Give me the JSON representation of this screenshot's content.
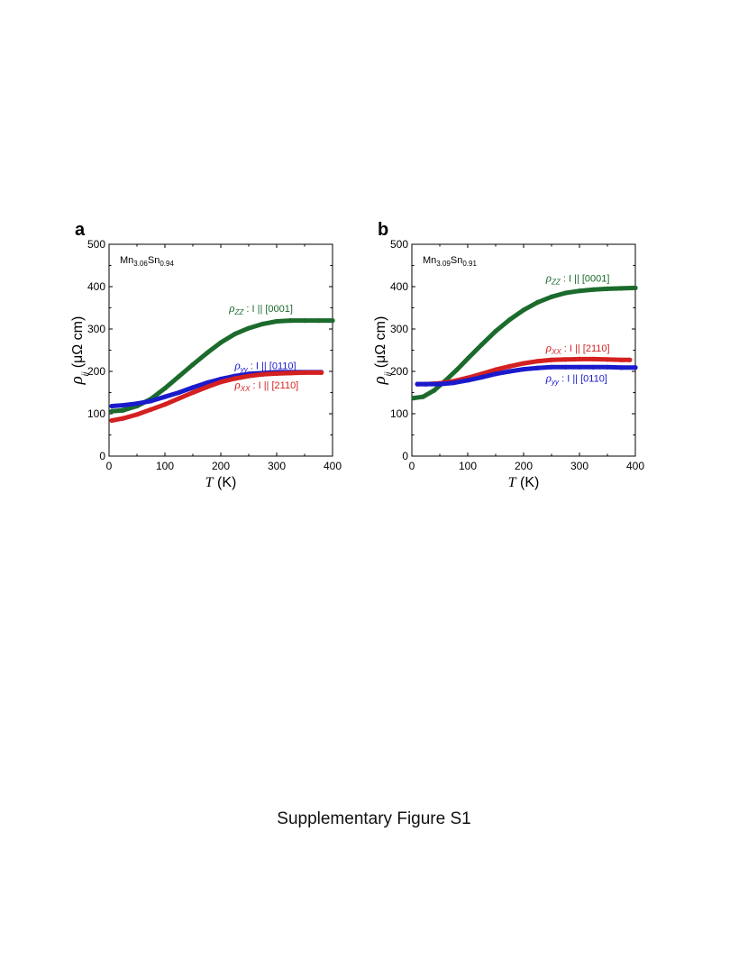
{
  "figure_caption": "Supplementary Figure S1",
  "chart_data": [
    {
      "type": "line",
      "panel_label": "a",
      "sample": {
        "base1": "Mn",
        "sub1": "3.06",
        "base2": "Sn",
        "sub2": "0.94"
      },
      "xlabel": {
        "var": "T",
        "unit": " (K)"
      },
      "ylabel": {
        "var": "ρ",
        "sub": "ii",
        "unit": " (μΩ cm)"
      },
      "xlim": [
        0,
        400
      ],
      "ylim": [
        0,
        500
      ],
      "xticks": [
        0,
        100,
        200,
        300,
        400
      ],
      "yticks": [
        0,
        100,
        200,
        300,
        400,
        500
      ],
      "series": [
        {
          "name": "rho_zz",
          "color": "#1b6b2c",
          "label": {
            "sym": "ρ",
            "sub": "ZZ",
            "text": " : I || [0001]"
          },
          "points": [
            [
              5,
              106
            ],
            [
              25,
              108
            ],
            [
              50,
              118
            ],
            [
              75,
              135
            ],
            [
              100,
              160
            ],
            [
              125,
              188
            ],
            [
              150,
              216
            ],
            [
              175,
              243
            ],
            [
              200,
              268
            ],
            [
              225,
              288
            ],
            [
              250,
              302
            ],
            [
              275,
              312
            ],
            [
              300,
              318
            ],
            [
              325,
              320
            ],
            [
              350,
              320
            ],
            [
              375,
              320
            ],
            [
              400,
              320
            ]
          ]
        },
        {
          "name": "rho_yy",
          "color": "#1a1acc",
          "label": {
            "sym": "ρ",
            "sub": "yy",
            "text": " : I || [0110]"
          },
          "points": [
            [
              5,
              118
            ],
            [
              25,
              120
            ],
            [
              50,
              124
            ],
            [
              75,
              130
            ],
            [
              100,
              140
            ],
            [
              125,
              150
            ],
            [
              150,
              162
            ],
            [
              175,
              173
            ],
            [
              200,
              182
            ],
            [
              225,
              189
            ],
            [
              250,
              194
            ],
            [
              275,
              196
            ],
            [
              300,
              198
            ],
            [
              325,
              198
            ],
            [
              350,
              198
            ],
            [
              380,
              198
            ]
          ]
        },
        {
          "name": "rho_xx",
          "color": "#d42020",
          "label": {
            "sym": "ρ",
            "sub": "XX",
            "text": " : I || [2110]"
          },
          "points": [
            [
              5,
              84
            ],
            [
              25,
              89
            ],
            [
              50,
              98
            ],
            [
              75,
              110
            ],
            [
              100,
              122
            ],
            [
              125,
              136
            ],
            [
              150,
              150
            ],
            [
              175,
              163
            ],
            [
              200,
              175
            ],
            [
              225,
              183
            ],
            [
              250,
              189
            ],
            [
              275,
              193
            ],
            [
              300,
              195
            ],
            [
              325,
              196
            ],
            [
              350,
              197
            ],
            [
              380,
              197
            ]
          ]
        }
      ]
    },
    {
      "type": "line",
      "panel_label": "b",
      "sample": {
        "base1": "Mn",
        "sub1": "3.09",
        "base2": "Sn",
        "sub2": "0.91"
      },
      "xlabel": {
        "var": "T",
        "unit": " (K)"
      },
      "ylabel": {
        "var": "ρ",
        "sub": "ii",
        "unit": " (μΩ cm)"
      },
      "xlim": [
        0,
        400
      ],
      "ylim": [
        0,
        500
      ],
      "xticks": [
        0,
        100,
        200,
        300,
        400
      ],
      "yticks": [
        0,
        100,
        200,
        300,
        400,
        500
      ],
      "series": [
        {
          "name": "rho_zz",
          "color": "#1b6b2c",
          "label": {
            "sym": "ρ",
            "sub": "ZZ",
            "text": " : I || [0001]"
          },
          "points": [
            [
              3,
              137
            ],
            [
              20,
              140
            ],
            [
              40,
              155
            ],
            [
              60,
              178
            ],
            [
              80,
              203
            ],
            [
              100,
              230
            ],
            [
              125,
              263
            ],
            [
              150,
              295
            ],
            [
              175,
              322
            ],
            [
              200,
              345
            ],
            [
              225,
              363
            ],
            [
              250,
              376
            ],
            [
              275,
              385
            ],
            [
              300,
              390
            ],
            [
              325,
              393
            ],
            [
              350,
              395
            ],
            [
              375,
              396
            ],
            [
              400,
              397
            ]
          ]
        },
        {
          "name": "rho_xx",
          "color": "#d42020",
          "label": {
            "sym": "ρ",
            "sub": "XX",
            "text": " : I || [2110]"
          },
          "points": [
            [
              10,
              170
            ],
            [
              25,
              170
            ],
            [
              50,
              172
            ],
            [
              75,
              177
            ],
            [
              100,
              185
            ],
            [
              125,
              194
            ],
            [
              150,
              204
            ],
            [
              175,
              212
            ],
            [
              200,
              219
            ],
            [
              225,
              224
            ],
            [
              250,
              227
            ],
            [
              275,
              228
            ],
            [
              300,
              229
            ],
            [
              325,
              229
            ],
            [
              350,
              228
            ],
            [
              375,
              227
            ],
            [
              390,
              227
            ]
          ]
        },
        {
          "name": "rho_yy",
          "color": "#1a1acc",
          "label": {
            "sym": "ρ",
            "sub": "yy",
            "text": " : I || [0110]"
          },
          "points": [
            [
              10,
              170
            ],
            [
              25,
              170
            ],
            [
              50,
              170
            ],
            [
              75,
              173
            ],
            [
              100,
              179
            ],
            [
              125,
              186
            ],
            [
              150,
              194
            ],
            [
              175,
              200
            ],
            [
              200,
              205
            ],
            [
              225,
              208
            ],
            [
              250,
              210
            ],
            [
              275,
              210
            ],
            [
              300,
              210
            ],
            [
              325,
              210
            ],
            [
              350,
              210
            ],
            [
              375,
              209
            ],
            [
              400,
              209
            ]
          ]
        }
      ]
    }
  ]
}
